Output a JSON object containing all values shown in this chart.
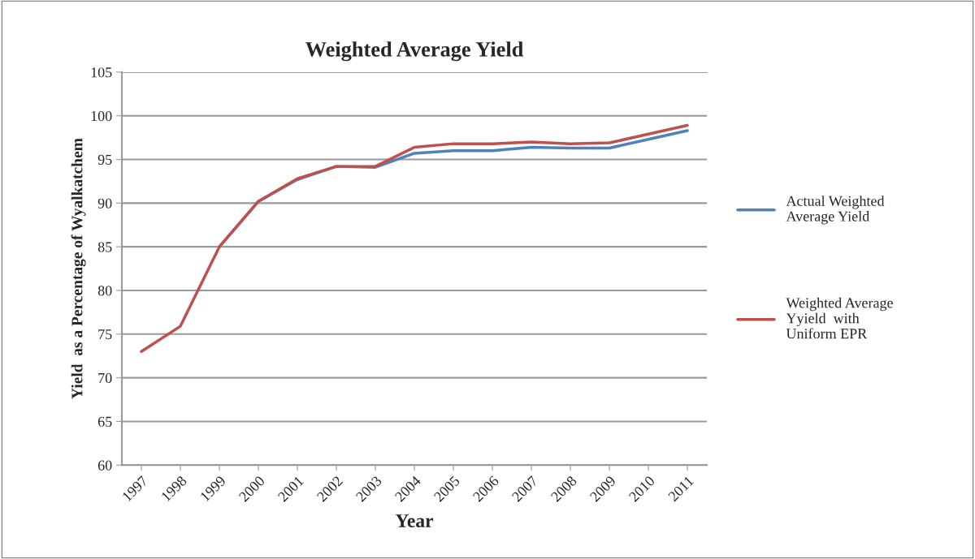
{
  "chart_data": {
    "type": "line",
    "title": "Weighted Average Yield",
    "xlabel": "Year",
    "ylabel": "Yield  as a Percentage of Wyalkatchem",
    "categories": [
      "1997",
      "1998",
      "1999",
      "2000",
      "2001",
      "2002",
      "2003",
      "2004",
      "2005",
      "2006",
      "2007",
      "2008",
      "2009",
      "2010",
      "2011"
    ],
    "series": [
      {
        "name": "Actual Weighted\nAverage Yield",
        "color": "#4f81bd",
        "values": [
          null,
          null,
          85.0,
          90.2,
          92.7,
          94.2,
          94.1,
          95.7,
          96.0,
          96.0,
          96.4,
          96.3,
          96.3,
          97.3,
          98.3
        ]
      },
      {
        "name": "Weighted Average\nYyield  with\nUniform EPR",
        "color": "#c0504d",
        "values": [
          73.0,
          75.9,
          85.0,
          90.2,
          92.8,
          94.2,
          94.2,
          96.4,
          96.8,
          96.8,
          97.0,
          96.8,
          96.9,
          97.9,
          98.9
        ]
      }
    ],
    "ylim": [
      60,
      105
    ],
    "yticks": [
      60,
      65,
      70,
      75,
      80,
      85,
      90,
      95,
      100,
      105
    ],
    "grid": "y",
    "legend": "right",
    "marker": "none",
    "line_style": "solid"
  }
}
